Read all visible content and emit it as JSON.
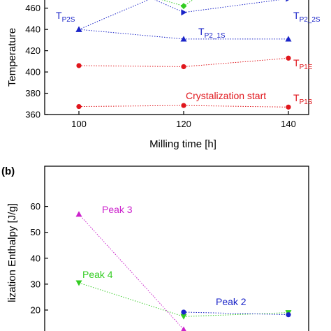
{
  "colors": {
    "red": "#e0161c",
    "blue": "#1a24c8",
    "green": "#33cc22",
    "magenta": "#cc22cc"
  },
  "chart_data": [
    {
      "type": "scatter",
      "panel_label": "",
      "xlabel": "Milling time [h]",
      "ylabel": "Temperature",
      "x": [
        100,
        120,
        140
      ],
      "x_ticks": [
        "100",
        "120",
        "140"
      ],
      "y_ticks": [
        "360",
        "380",
        "400",
        "420",
        "440",
        "460"
      ],
      "ylim": [
        360,
        482
      ],
      "series": [
        {
          "name": "T_P1S",
          "label_main": "T",
          "label_sub": "P1S",
          "color": "#e0161c",
          "marker": "circle",
          "values": [
            367.5,
            368.5,
            367
          ]
        },
        {
          "name": "T_P1E",
          "label_main": "T",
          "label_sub": "P1E",
          "color": "#e0161c",
          "marker": "circle",
          "values": [
            406,
            405,
            413
          ]
        },
        {
          "name": "T_P2_1S",
          "label_main": "T",
          "label_sub": "P2_1S",
          "color": "#1a24c8",
          "marker": "triangle-up",
          "values": [
            440,
            431,
            431
          ]
        },
        {
          "name": "T_P2S",
          "label_main": "T",
          "label_sub": "P2S",
          "color": "#1a24c8",
          "marker": "triangle-up",
          "values": [
            440,
            null,
            null
          ]
        },
        {
          "name": "T_P2_2S",
          "label_main": "T",
          "label_sub": "P2_2S",
          "color": "#1a24c8",
          "marker": "triangle-right",
          "values": [
            null,
            456,
            469
          ]
        },
        {
          "name": "green",
          "color": "#33cc22",
          "marker": "diamond",
          "values": [
            null,
            462,
            null
          ]
        }
      ],
      "annotations": [
        "Crystalization start"
      ]
    },
    {
      "type": "scatter",
      "panel_label": "(b)",
      "xlabel": "",
      "ylabel": "lization Enthalpy [J/g]",
      "x": [
        100,
        120,
        140
      ],
      "y_ticks": [
        "20",
        "30",
        "40",
        "50",
        "60"
      ],
      "ylim": [
        13,
        62
      ],
      "series": [
        {
          "name": "Peak 3",
          "color": "#cc22cc",
          "marker": "triangle-up",
          "values": [
            57,
            12.5,
            null
          ]
        },
        {
          "name": "Peak 4",
          "color": "#33cc22",
          "marker": "triangle-down",
          "values": [
            30.5,
            17.5,
            19
          ]
        },
        {
          "name": "Peak 2",
          "color": "#1a24c8",
          "marker": "circle",
          "values": [
            null,
            19.2,
            18.2
          ]
        }
      ]
    }
  ]
}
